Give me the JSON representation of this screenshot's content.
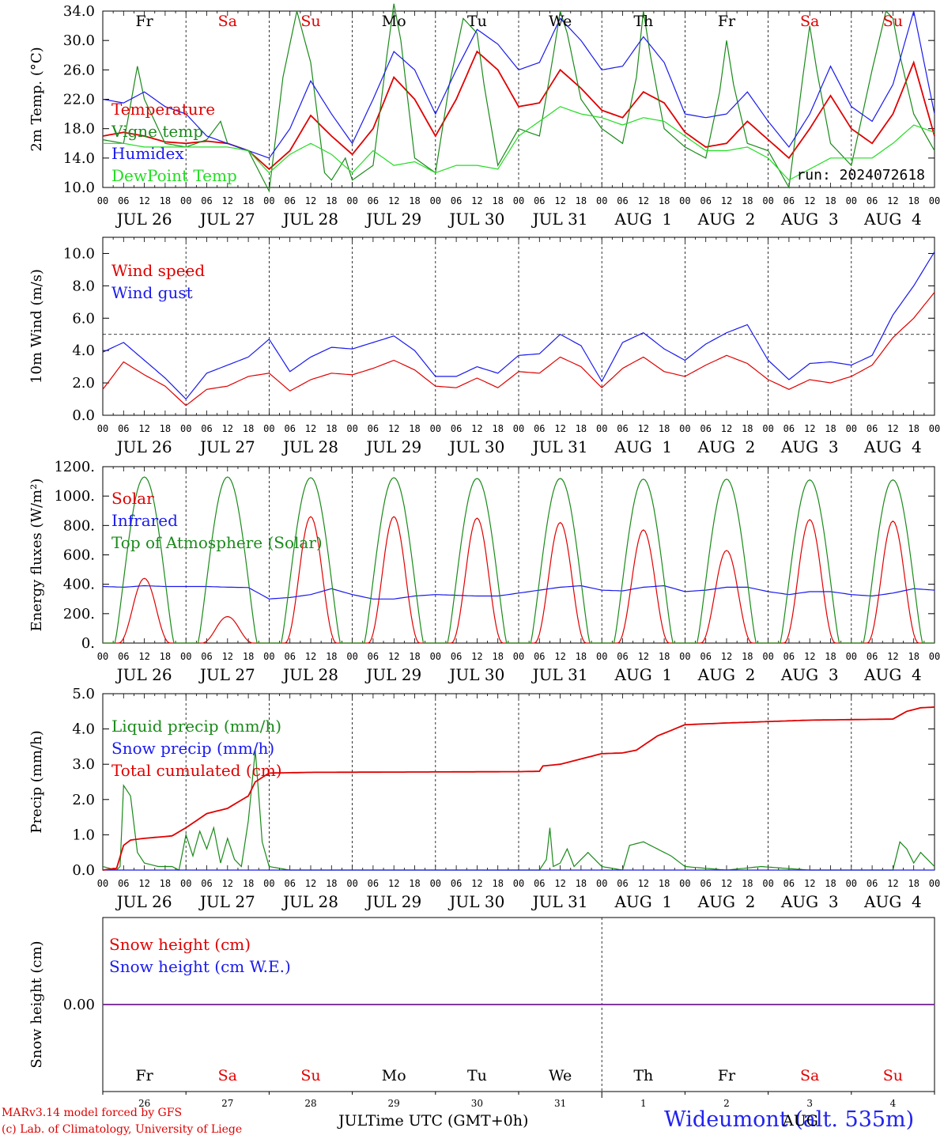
{
  "header": {},
  "footer": {
    "model_line": "MARv3.14 model forced by GFS",
    "credit_line": "(c) Lab. of Climatology, University of Liege",
    "time_label": "Time UTC (GMT+0h)",
    "station_label": "Wideumont (alt. 535m)",
    "month_left": "JUL",
    "month_right": "AUG"
  },
  "colors": {
    "red": "#e00000",
    "green": "#1a8a1a",
    "blue": "#1a1aee",
    "lightgreen": "#22dd22",
    "purple": "#7a2a9a"
  },
  "chart_data": [
    {
      "type": "line",
      "panel": "temperature",
      "ylabel": "2m Temp. (°C)",
      "ylim": [
        10.0,
        34.0
      ],
      "yticks": [
        "10.0",
        "14.0",
        "18.0",
        "22.0",
        "26.0",
        "30.0",
        "34.0"
      ],
      "annotation": "run: 2024072618",
      "day_labels": [
        "Fr",
        "Sa",
        "Su",
        "Mo",
        "Tu",
        "We",
        "Th",
        "Fr",
        "Sa",
        "Su"
      ],
      "date_labels": [
        "JUL 26",
        "JUL 27",
        "JUL 28",
        "JUL 29",
        "JUL 30",
        "JUL 31",
        "AUG  1",
        "AUG  2",
        "AUG  3",
        "AUG  4"
      ],
      "hour_ticks": [
        "00",
        "06",
        "12",
        "18"
      ],
      "series": [
        {
          "name": "Temperature",
          "color": "red",
          "x": [
            0,
            6,
            12,
            18,
            24,
            30,
            36,
            42,
            48,
            54,
            60,
            66,
            72,
            78,
            84,
            90,
            96,
            102,
            108,
            114,
            120,
            126,
            132,
            138,
            144,
            150,
            156,
            162,
            168,
            174,
            180,
            186,
            192,
            198,
            204,
            210,
            216,
            222,
            228,
            234,
            240
          ],
          "values": [
            17.0,
            17.5,
            17.0,
            16.2,
            16.0,
            16.3,
            16.0,
            15.0,
            12.5,
            15.0,
            19.8,
            17.0,
            14.5,
            18.0,
            25.0,
            22.0,
            17.0,
            22.0,
            28.5,
            26.0,
            21.0,
            21.5,
            26.0,
            23.5,
            20.5,
            19.5,
            23.0,
            21.5,
            17.5,
            15.5,
            16.0,
            19.0,
            16.5,
            14.0,
            18.0,
            22.5,
            18.0,
            16.0,
            20.0,
            27.0,
            17.0
          ]
        },
        {
          "name": "Vigne temp",
          "color": "green",
          "x": [
            0,
            6,
            10,
            12,
            14,
            18,
            24,
            30,
            34,
            36,
            42,
            48,
            52,
            56,
            60,
            64,
            66,
            70,
            72,
            78,
            82,
            84,
            86,
            90,
            96,
            100,
            104,
            108,
            110,
            114,
            120,
            126,
            130,
            132,
            134,
            138,
            144,
            150,
            154,
            156,
            158,
            162,
            168,
            174,
            178,
            180,
            182,
            186,
            192,
            198,
            202,
            204,
            206,
            210,
            216,
            222,
            226,
            228,
            230,
            234,
            240
          ],
          "values": [
            16.5,
            16.0,
            26.5,
            22.0,
            20.0,
            16.0,
            15.5,
            16.5,
            19.0,
            16.0,
            15.0,
            9.5,
            25.0,
            34.0,
            27.0,
            12.0,
            11.0,
            14.0,
            11.0,
            13.0,
            28.0,
            35.0,
            30.0,
            14.0,
            12.0,
            24.0,
            33.0,
            31.0,
            24.0,
            13.0,
            18.0,
            17.0,
            28.0,
            34.0,
            31.0,
            22.0,
            18.0,
            16.0,
            25.0,
            34.0,
            28.0,
            18.0,
            15.5,
            14.0,
            23.0,
            30.0,
            24.0,
            16.0,
            15.0,
            10.0,
            25.0,
            32.0,
            26.0,
            16.0,
            13.0,
            26.0,
            34.0,
            33.0,
            28.0,
            20.0,
            15.0
          ]
        },
        {
          "name": "Humidex",
          "color": "blue",
          "x": [
            0,
            6,
            12,
            18,
            24,
            30,
            36,
            42,
            48,
            54,
            60,
            66,
            72,
            78,
            84,
            90,
            96,
            102,
            108,
            114,
            120,
            126,
            132,
            138,
            144,
            150,
            156,
            162,
            168,
            174,
            180,
            186,
            192,
            198,
            204,
            210,
            216,
            222,
            228,
            234,
            240
          ],
          "values": [
            22.0,
            21.5,
            23.0,
            21.0,
            20.0,
            17.0,
            16.0,
            15.0,
            14.0,
            18.0,
            24.5,
            20.0,
            16.0,
            22.0,
            28.5,
            26.0,
            20.0,
            26.0,
            31.5,
            29.5,
            26.0,
            27.0,
            33.0,
            30.0,
            26.0,
            26.5,
            30.5,
            27.0,
            20.0,
            19.5,
            20.0,
            23.0,
            19.0,
            15.5,
            20.0,
            26.5,
            21.0,
            19.0,
            24.0,
            34.0,
            20.0
          ]
        },
        {
          "name": "DewPoint Temp",
          "color": "lightgreen",
          "x": [
            0,
            6,
            12,
            18,
            24,
            30,
            36,
            42,
            48,
            54,
            60,
            66,
            72,
            78,
            84,
            90,
            96,
            102,
            108,
            114,
            120,
            126,
            132,
            138,
            144,
            150,
            156,
            162,
            168,
            174,
            180,
            186,
            192,
            198,
            204,
            210,
            216,
            222,
            228,
            234,
            240
          ],
          "values": [
            16.0,
            16.0,
            15.5,
            15.5,
            15.5,
            15.5,
            15.5,
            15.0,
            12.0,
            14.5,
            16.0,
            14.5,
            12.0,
            15.0,
            13.0,
            13.5,
            12.0,
            13.0,
            13.0,
            12.5,
            17.0,
            19.0,
            21.0,
            20.0,
            19.5,
            18.5,
            19.5,
            19.0,
            17.0,
            15.0,
            15.0,
            15.5,
            14.0,
            11.0,
            12.5,
            14.0,
            14.0,
            14.0,
            16.0,
            18.5,
            17.5
          ]
        }
      ]
    },
    {
      "type": "line",
      "panel": "wind",
      "ylabel": "10m Wind (m/s)",
      "ylim": [
        0.0,
        11.0
      ],
      "yticks": [
        "0.0",
        "2.0",
        "4.0",
        "6.0",
        "8.0",
        "10.0"
      ],
      "reference_line": 5.0,
      "date_labels": [
        "JUL 26",
        "JUL 27",
        "JUL 28",
        "JUL 29",
        "JUL 30",
        "JUL 31",
        "AUG  1",
        "AUG  2",
        "AUG  3",
        "AUG  4"
      ],
      "hour_ticks": [
        "00",
        "06",
        "12",
        "18"
      ],
      "series": [
        {
          "name": "Wind speed",
          "color": "red",
          "x": [
            0,
            6,
            12,
            18,
            24,
            30,
            36,
            42,
            48,
            54,
            60,
            66,
            72,
            78,
            84,
            90,
            96,
            102,
            108,
            114,
            120,
            126,
            132,
            138,
            144,
            150,
            156,
            162,
            168,
            174,
            180,
            186,
            192,
            198,
            204,
            210,
            216,
            222,
            228,
            234,
            240
          ],
          "values": [
            1.6,
            3.3,
            2.5,
            1.8,
            0.6,
            1.6,
            1.8,
            2.4,
            2.6,
            1.5,
            2.2,
            2.6,
            2.5,
            2.9,
            3.4,
            2.8,
            1.8,
            1.7,
            2.3,
            1.7,
            2.7,
            2.6,
            3.6,
            3.0,
            1.7,
            2.9,
            3.6,
            2.7,
            2.4,
            3.1,
            3.7,
            3.2,
            2.2,
            1.6,
            2.2,
            2.0,
            2.4,
            3.1,
            4.8,
            6.0,
            7.6
          ]
        },
        {
          "name": "Wind gust",
          "color": "blue",
          "x": [
            0,
            6,
            12,
            18,
            24,
            30,
            36,
            42,
            48,
            54,
            60,
            66,
            72,
            78,
            84,
            90,
            96,
            102,
            108,
            114,
            120,
            126,
            132,
            138,
            144,
            150,
            156,
            162,
            168,
            174,
            180,
            186,
            192,
            198,
            204,
            210,
            216,
            222,
            228,
            234,
            240
          ],
          "values": [
            3.9,
            4.5,
            3.4,
            2.3,
            1.0,
            2.6,
            3.1,
            3.6,
            4.7,
            2.7,
            3.6,
            4.2,
            4.1,
            4.5,
            4.9,
            4.0,
            2.4,
            2.4,
            3.0,
            2.6,
            3.7,
            3.8,
            5.0,
            4.3,
            2.1,
            4.5,
            5.1,
            4.1,
            3.4,
            4.4,
            5.1,
            5.6,
            3.4,
            2.2,
            3.2,
            3.3,
            3.1,
            3.7,
            6.2,
            8.0,
            10.1
          ]
        }
      ]
    },
    {
      "type": "line",
      "panel": "energy",
      "ylabel": "Energy fluxes (W/m²)",
      "ylim": [
        0,
        1200
      ],
      "yticks": [
        "0.",
        "200.",
        "400.",
        "600.",
        "800.",
        "1000.",
        "1200."
      ],
      "date_labels": [
        "JUL 26",
        "JUL 27",
        "JUL 28",
        "JUL 29",
        "JUL 30",
        "JUL 31",
        "AUG  1",
        "AUG  2",
        "AUG  3",
        "AUG  4"
      ],
      "hour_ticks": [
        "00",
        "06",
        "12",
        "18"
      ],
      "series": [
        {
          "name": "Solar",
          "color": "red",
          "day_peaks": [
            440,
            180,
            860,
            860,
            850,
            820,
            770,
            630,
            840,
            830
          ]
        },
        {
          "name": "Infrared",
          "color": "blue",
          "x": [
            0,
            6,
            12,
            18,
            24,
            30,
            36,
            42,
            48,
            54,
            60,
            66,
            72,
            78,
            84,
            90,
            96,
            102,
            108,
            114,
            120,
            126,
            132,
            138,
            144,
            150,
            156,
            162,
            168,
            174,
            180,
            186,
            192,
            198,
            204,
            210,
            216,
            222,
            228,
            234,
            240
          ],
          "values": [
            385,
            380,
            390,
            385,
            385,
            385,
            380,
            378,
            300,
            310,
            330,
            370,
            330,
            300,
            300,
            320,
            330,
            325,
            320,
            320,
            340,
            360,
            380,
            390,
            360,
            355,
            380,
            390,
            350,
            360,
            380,
            380,
            350,
            330,
            350,
            350,
            330,
            320,
            340,
            370,
            360
          ]
        },
        {
          "name": "Top of Atmosphere (Solar)",
          "color": "green",
          "day_peaks": [
            1130,
            1130,
            1125,
            1125,
            1120,
            1120,
            1115,
            1115,
            1110,
            1110
          ]
        }
      ]
    },
    {
      "type": "line",
      "panel": "precip",
      "ylabel": "Precip (mm/h)",
      "ylim": [
        0.0,
        5.0
      ],
      "yticks": [
        "0.0",
        "1.0",
        "2.0",
        "3.0",
        "4.0",
        "5.0"
      ],
      "date_labels": [
        "JUL 26",
        "JUL 27",
        "JUL 28",
        "JUL 29",
        "JUL 30",
        "JUL 31",
        "AUG  1",
        "AUG  2",
        "AUG  3",
        "AUG  4"
      ],
      "hour_ticks": [
        "00",
        "06",
        "12",
        "18"
      ],
      "series": [
        {
          "name": "Liquid precip (mm/h)",
          "color": "green",
          "x": [
            0,
            4,
            5,
            6,
            8,
            10,
            12,
            16,
            20,
            22,
            24,
            26,
            28,
            30,
            32,
            34,
            36,
            38,
            40,
            42,
            44,
            46,
            48,
            54,
            60,
            126,
            128,
            129,
            130,
            132,
            134,
            136,
            140,
            144,
            150,
            152,
            156,
            160,
            164,
            168,
            180,
            190,
            204,
            228,
            229,
            230,
            232,
            234,
            236,
            238,
            240
          ],
          "values": [
            0.1,
            0.0,
            0.1,
            2.4,
            2.1,
            0.5,
            0.2,
            0.1,
            0.1,
            0.0,
            1.0,
            0.4,
            1.1,
            0.6,
            1.2,
            0.2,
            0.9,
            0.3,
            0.1,
            1.4,
            3.4,
            0.8,
            0.1,
            0.0,
            0.0,
            0.0,
            0.3,
            1.2,
            0.1,
            0.2,
            0.6,
            0.1,
            0.5,
            0.1,
            0.0,
            0.7,
            0.8,
            0.6,
            0.4,
            0.1,
            0.0,
            0.1,
            0.0,
            0.0,
            0.4,
            0.8,
            0.6,
            0.2,
            0.5,
            0.3,
            0.1
          ]
        },
        {
          "name": "Snow precip (mm/h)",
          "color": "blue",
          "x": [
            0,
            240
          ],
          "values": [
            0.0,
            0.0
          ]
        },
        {
          "name": "Total cumulated (cm)",
          "color": "red",
          "x": [
            0,
            4,
            6,
            8,
            12,
            18,
            20,
            24,
            30,
            36,
            42,
            44,
            48,
            60,
            120,
            126,
            127,
            132,
            136,
            144,
            150,
            154,
            160,
            168,
            180,
            204,
            228,
            232,
            236,
            240
          ],
          "values": [
            0.0,
            0.05,
            0.7,
            0.85,
            0.9,
            0.95,
            0.97,
            1.2,
            1.6,
            1.75,
            2.1,
            2.5,
            2.75,
            2.77,
            2.79,
            2.8,
            2.95,
            3.0,
            3.1,
            3.3,
            3.32,
            3.4,
            3.8,
            4.12,
            4.17,
            4.25,
            4.28,
            4.5,
            4.6,
            4.62
          ]
        }
      ]
    },
    {
      "type": "line",
      "panel": "snow",
      "ylabel": "Snow height (cm)",
      "ylim": [
        -1,
        1
      ],
      "yticks": [
        "0.00"
      ],
      "day_labels": [
        "Fr",
        "Sa",
        "Su",
        "Mo",
        "Tu",
        "We",
        "Th",
        "Fr",
        "Sa",
        "Su"
      ],
      "day_numbers": [
        "26",
        "27",
        "28",
        "29",
        "30",
        "31",
        "1",
        "2",
        "3",
        "4"
      ],
      "series": [
        {
          "name": "Snow height (cm)",
          "color": "red",
          "x": [
            0,
            240
          ],
          "values": [
            0.0,
            0.0
          ]
        },
        {
          "name": "Snow height (cm W.E.)",
          "color": "blue",
          "x": [
            0,
            240
          ],
          "values": [
            0.0,
            0.0
          ]
        }
      ]
    }
  ]
}
